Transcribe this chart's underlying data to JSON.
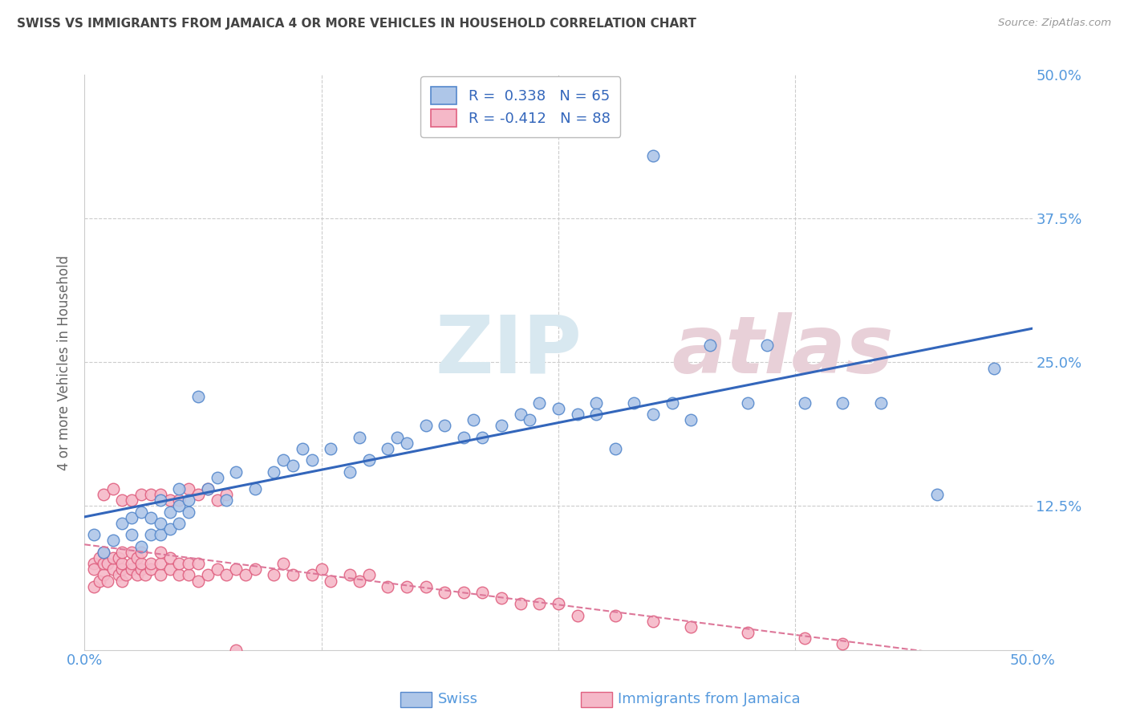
{
  "title": "SWISS VS IMMIGRANTS FROM JAMAICA 4 OR MORE VEHICLES IN HOUSEHOLD CORRELATION CHART",
  "source": "Source: ZipAtlas.com",
  "ylabel": "4 or more Vehicles in Household",
  "xlim": [
    0.0,
    0.5
  ],
  "ylim": [
    0.0,
    0.5
  ],
  "watermark_text": "ZIPatlas",
  "swiss_color": "#aec6e8",
  "jamaica_color": "#f5b8c8",
  "swiss_edge_color": "#5588cc",
  "jamaica_edge_color": "#e06080",
  "swiss_line_color": "#3366bb",
  "jamaica_line_color": "#dd7799",
  "background_color": "#ffffff",
  "grid_color": "#cccccc",
  "title_color": "#444444",
  "axis_label_color": "#666666",
  "tick_label_color": "#5599dd",
  "legend_text_color": "#3366bb",
  "swiss_x": [
    0.005,
    0.01,
    0.015,
    0.02,
    0.025,
    0.025,
    0.03,
    0.03,
    0.035,
    0.035,
    0.04,
    0.04,
    0.04,
    0.045,
    0.045,
    0.05,
    0.05,
    0.05,
    0.055,
    0.055,
    0.06,
    0.065,
    0.07,
    0.075,
    0.08,
    0.09,
    0.1,
    0.105,
    0.11,
    0.115,
    0.12,
    0.13,
    0.14,
    0.145,
    0.15,
    0.16,
    0.165,
    0.17,
    0.18,
    0.19,
    0.2,
    0.205,
    0.21,
    0.22,
    0.23,
    0.235,
    0.24,
    0.25,
    0.26,
    0.27,
    0.28,
    0.29,
    0.3,
    0.31,
    0.32,
    0.33,
    0.35,
    0.36,
    0.38,
    0.4,
    0.3,
    0.42,
    0.45,
    0.48,
    0.27
  ],
  "swiss_y": [
    0.1,
    0.085,
    0.095,
    0.11,
    0.1,
    0.115,
    0.09,
    0.12,
    0.1,
    0.115,
    0.1,
    0.11,
    0.13,
    0.105,
    0.12,
    0.11,
    0.125,
    0.14,
    0.12,
    0.13,
    0.22,
    0.14,
    0.15,
    0.13,
    0.155,
    0.14,
    0.155,
    0.165,
    0.16,
    0.175,
    0.165,
    0.175,
    0.155,
    0.185,
    0.165,
    0.175,
    0.185,
    0.18,
    0.195,
    0.195,
    0.185,
    0.2,
    0.185,
    0.195,
    0.205,
    0.2,
    0.215,
    0.21,
    0.205,
    0.215,
    0.175,
    0.215,
    0.205,
    0.215,
    0.2,
    0.265,
    0.215,
    0.265,
    0.215,
    0.215,
    0.43,
    0.215,
    0.135,
    0.245,
    0.205
  ],
  "jamaica_x": [
    0.005,
    0.005,
    0.005,
    0.008,
    0.008,
    0.01,
    0.01,
    0.01,
    0.012,
    0.012,
    0.015,
    0.015,
    0.018,
    0.018,
    0.02,
    0.02,
    0.02,
    0.02,
    0.022,
    0.025,
    0.025,
    0.025,
    0.028,
    0.028,
    0.03,
    0.03,
    0.03,
    0.032,
    0.035,
    0.035,
    0.04,
    0.04,
    0.04,
    0.045,
    0.045,
    0.05,
    0.05,
    0.055,
    0.055,
    0.06,
    0.06,
    0.065,
    0.07,
    0.075,
    0.08,
    0.085,
    0.09,
    0.1,
    0.105,
    0.11,
    0.12,
    0.125,
    0.13,
    0.14,
    0.145,
    0.15,
    0.16,
    0.17,
    0.18,
    0.19,
    0.2,
    0.21,
    0.22,
    0.23,
    0.24,
    0.25,
    0.26,
    0.28,
    0.3,
    0.32,
    0.35,
    0.38,
    0.4,
    0.01,
    0.015,
    0.02,
    0.025,
    0.03,
    0.035,
    0.04,
    0.045,
    0.05,
    0.055,
    0.06,
    0.065,
    0.07,
    0.075,
    0.08
  ],
  "jamaica_y": [
    0.075,
    0.055,
    0.07,
    0.06,
    0.08,
    0.065,
    0.075,
    0.085,
    0.06,
    0.075,
    0.07,
    0.08,
    0.065,
    0.08,
    0.06,
    0.07,
    0.075,
    0.085,
    0.065,
    0.07,
    0.075,
    0.085,
    0.065,
    0.08,
    0.07,
    0.075,
    0.085,
    0.065,
    0.07,
    0.075,
    0.065,
    0.075,
    0.085,
    0.07,
    0.08,
    0.065,
    0.075,
    0.065,
    0.075,
    0.06,
    0.075,
    0.065,
    0.07,
    0.065,
    0.07,
    0.065,
    0.07,
    0.065,
    0.075,
    0.065,
    0.065,
    0.07,
    0.06,
    0.065,
    0.06,
    0.065,
    0.055,
    0.055,
    0.055,
    0.05,
    0.05,
    0.05,
    0.045,
    0.04,
    0.04,
    0.04,
    0.03,
    0.03,
    0.025,
    0.02,
    0.015,
    0.01,
    0.005,
    0.135,
    0.14,
    0.13,
    0.13,
    0.135,
    0.135,
    0.135,
    0.13,
    0.13,
    0.14,
    0.135,
    0.14,
    0.13,
    0.135,
    0.0
  ]
}
